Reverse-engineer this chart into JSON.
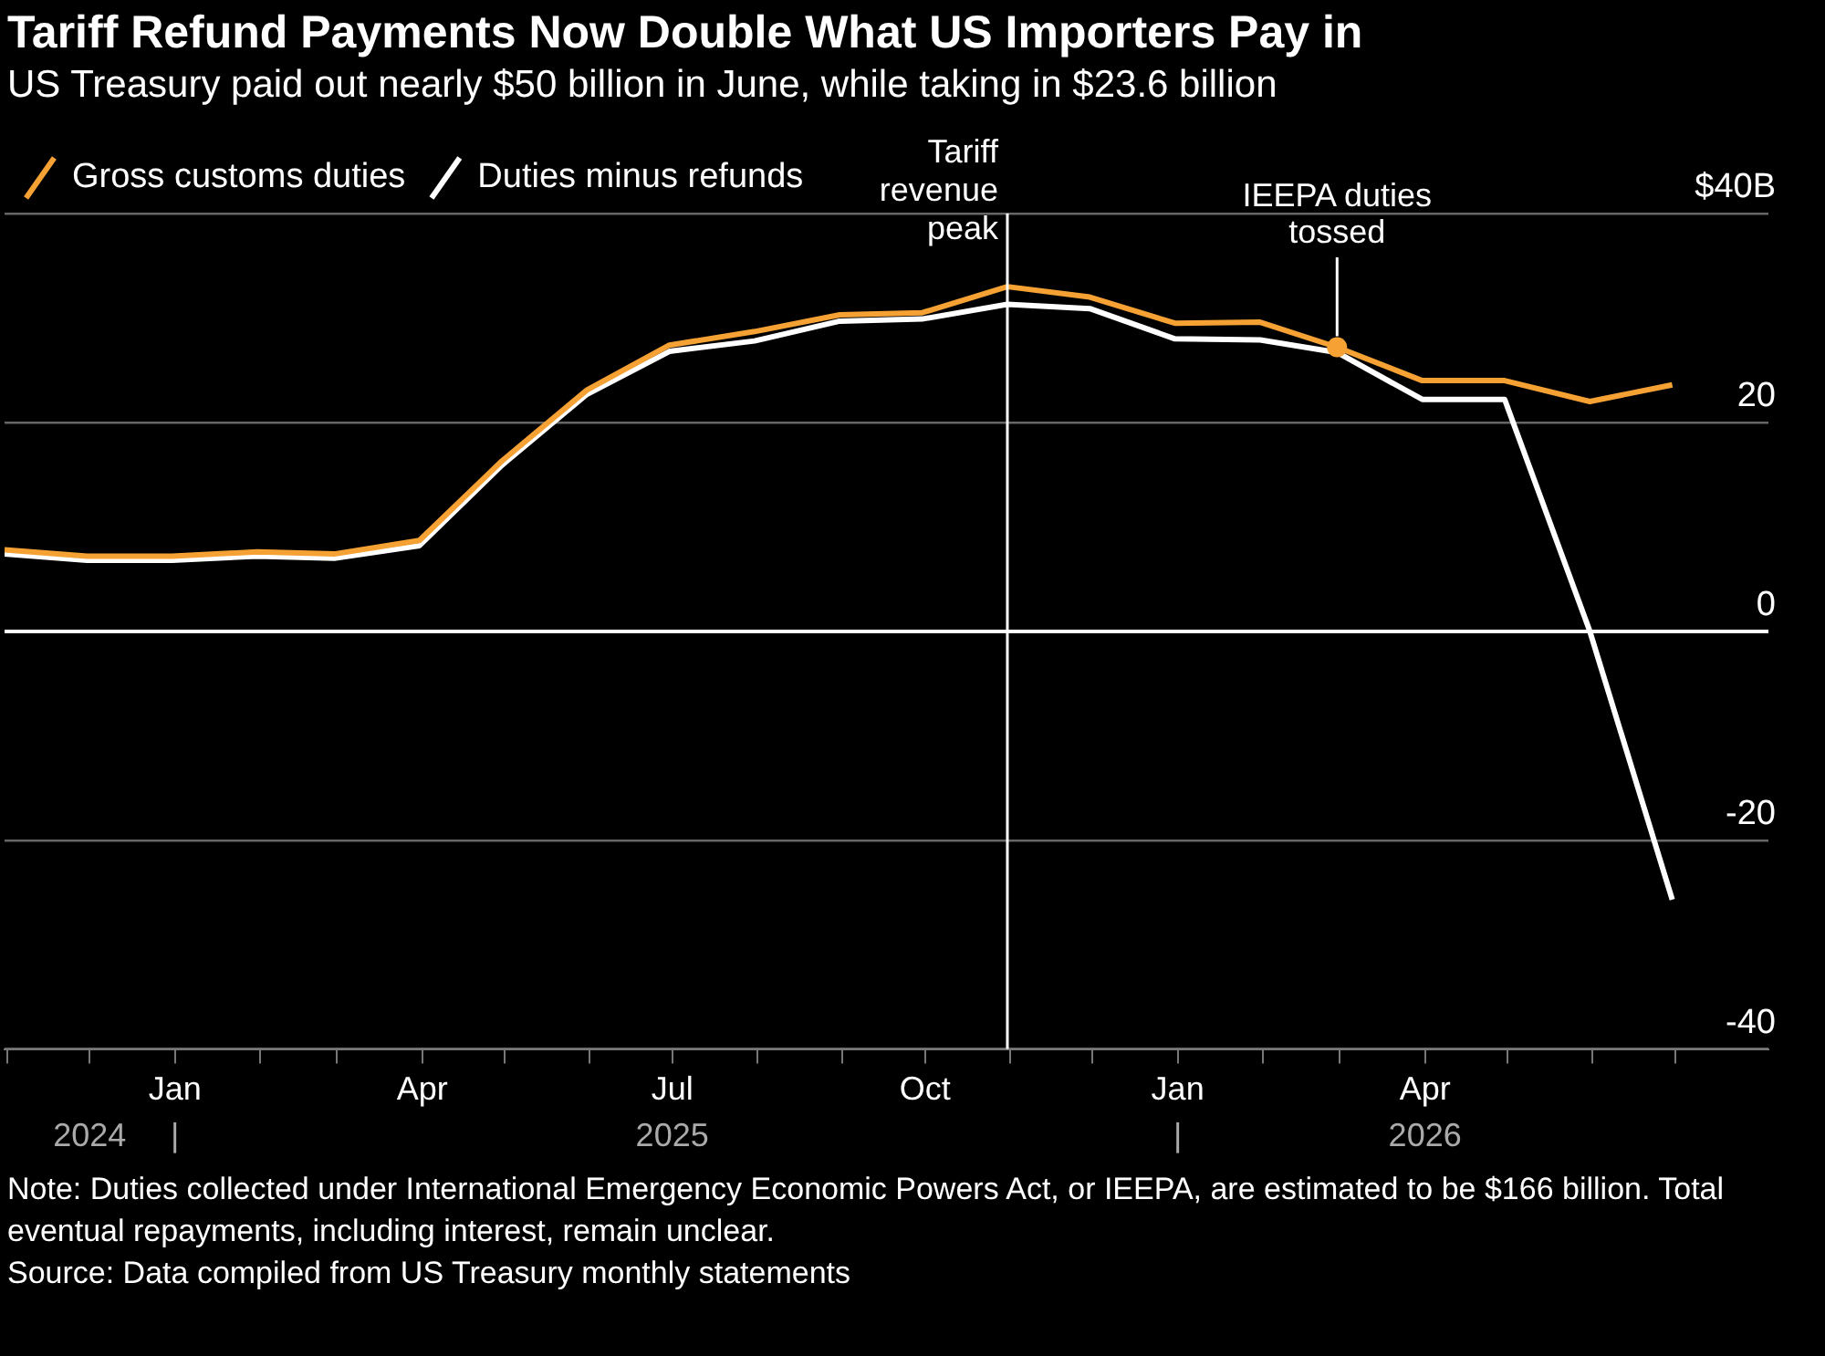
{
  "chart_data": {
    "type": "line",
    "title": "Tariff Refund Payments Now Double What US Importers Pay in",
    "subtitle": "US Treasury paid out nearly $50 billion in June, while taking in $23.6 billion",
    "x": [
      "2024-10-31",
      "2024-11-30",
      "2024-12-31",
      "2025-01-31",
      "2025-02-28",
      "2025-03-31",
      "2025-04-30",
      "2025-05-31",
      "2025-06-30",
      "2025-07-31",
      "2025-08-31",
      "2025-09-30",
      "2025-10-31",
      "2025-11-30",
      "2025-12-31",
      "2026-01-31",
      "2026-02-28",
      "2026-03-31",
      "2026-04-30",
      "2026-05-31",
      "2026-06-30"
    ],
    "series": [
      {
        "name": "Gross customs duties",
        "color": "#f5a133",
        "values": [
          7.8,
          7.2,
          7.2,
          7.6,
          7.4,
          8.7,
          16.3,
          23.1,
          27.4,
          28.7,
          30.3,
          30.5,
          33.0,
          32.0,
          29.5,
          29.6,
          27.2,
          24.0,
          24.0,
          22.0,
          23.6
        ]
      },
      {
        "name": "Duties minus refunds",
        "color": "#ffffff",
        "values": [
          7.4,
          6.8,
          6.8,
          7.2,
          7.0,
          8.2,
          15.9,
          22.7,
          26.8,
          27.8,
          29.7,
          29.9,
          31.3,
          30.9,
          28.0,
          27.9,
          26.7,
          22.2,
          22.2,
          0.0,
          -25.7
        ]
      }
    ],
    "xlim": [
      "2024-10-31",
      "2026-08-04"
    ],
    "xticks": [
      {
        "value": "2024-11-01",
        "label": null
      },
      {
        "value": "2024-12-01",
        "label": null
      },
      {
        "value": "2025-01-01",
        "label": "Jan"
      },
      {
        "value": "2025-02-01",
        "label": null
      },
      {
        "value": "2025-03-01",
        "label": null
      },
      {
        "value": "2025-04-01",
        "label": "Apr"
      },
      {
        "value": "2025-05-01",
        "label": null
      },
      {
        "value": "2025-06-01",
        "label": null
      },
      {
        "value": "2025-07-01",
        "label": "Jul"
      },
      {
        "value": "2025-08-01",
        "label": null
      },
      {
        "value": "2025-09-01",
        "label": null
      },
      {
        "value": "2025-10-01",
        "label": "Oct"
      },
      {
        "value": "2025-11-01",
        "label": null
      },
      {
        "value": "2025-12-01",
        "label": null
      },
      {
        "value": "2026-01-01",
        "label": "Jan"
      },
      {
        "value": "2026-02-01",
        "label": null
      },
      {
        "value": "2026-03-01",
        "label": null
      },
      {
        "value": "2026-04-01",
        "label": "Apr"
      },
      {
        "value": "2026-05-01",
        "label": null
      },
      {
        "value": "2026-06-01",
        "label": null
      },
      {
        "value": "2026-07-01",
        "label": null
      }
    ],
    "x2lim": [
      "2024-10-31",
      "2026-08-04"
    ],
    "x2ticks": [
      {
        "value": "2024-12-01",
        "label": "2024"
      },
      {
        "value": "2025-01-01",
        "label": "|"
      },
      {
        "value": "2025-07-01",
        "label": "2025"
      },
      {
        "value": "2026-01-01",
        "label": "|"
      },
      {
        "value": "2026-04-01",
        "label": "2026"
      }
    ],
    "ylim": [
      -40,
      40
    ],
    "yticks": [
      {
        "value": 40,
        "label": "$40B"
      },
      20,
      0,
      -20,
      -40
    ],
    "grid": "y",
    "legend": "top left",
    "marker": "none",
    "line_style": "solid",
    "ref_lines": [
      {
        "axis": "x",
        "value": "2025-10-31",
        "label": "Tariff revenue peak",
        "color": "#ffffff"
      }
    ],
    "annotations": [
      {
        "text": "IEEPA duties tossed",
        "x": "2026-02-28",
        "y": 27.2
      },
      "Note: Duties collected under International Emergency Economic Powers Act, or IEEPA, are estimated to be $166 billion. Total eventual repayments, including interest, remain unclear.",
      "Source: Data compiled from US Treasury monthly statements"
    ]
  }
}
